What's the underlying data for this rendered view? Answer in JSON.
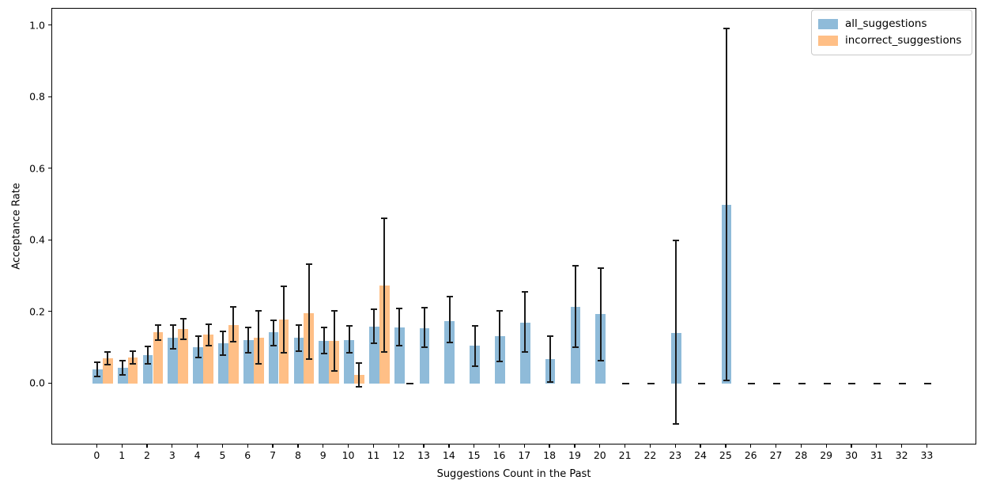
{
  "axes": {
    "ylabel": "Acceptance Rate",
    "xlabel": "Suggestions Count in the Past",
    "ytick_labels": [
      "0.0",
      "0.2",
      "0.4",
      "0.6",
      "0.8",
      "1.0"
    ],
    "spine_color": "#000000",
    "errorbar_color": "#1a1a1a"
  },
  "legend": {
    "items": [
      {
        "label": "all_suggestions",
        "color": "#8FBBD9",
        "swatch": "blue-swatch"
      },
      {
        "label": "incorrect_suggestions",
        "color": "#FFBF86",
        "swatch": "orange-swatch"
      }
    ],
    "position": "upper right"
  },
  "chart_data": {
    "type": "bar",
    "title": "",
    "xlabel": "Suggestions Count in the Past",
    "ylabel": "Acceptance Rate",
    "categories": [
      0,
      1,
      2,
      3,
      4,
      5,
      6,
      7,
      8,
      9,
      10,
      11,
      12,
      13,
      14,
      15,
      16,
      17,
      18,
      19,
      20,
      21,
      22,
      23,
      24,
      25,
      26,
      27,
      28,
      29,
      30,
      31,
      32,
      33
    ],
    "yticks": [
      0.0,
      0.2,
      0.4,
      0.6,
      0.8,
      1.0
    ],
    "ylim": [
      -0.172,
      1.048
    ],
    "xlim": [
      -1.803,
      34.966
    ],
    "grid": false,
    "error_bars": true,
    "legend_position": "upper right",
    "bar_width": 0.4,
    "series_offset": 0.405,
    "series": [
      {
        "name": "all_suggestions",
        "color": "#8FBBD9",
        "values": [
          0.04,
          0.044,
          0.079,
          0.129,
          0.102,
          0.113,
          0.122,
          0.143,
          0.128,
          0.119,
          0.122,
          0.16,
          0.158,
          0.156,
          0.176,
          0.106,
          0.132,
          0.171,
          0.068,
          0.215,
          0.194,
          0,
          0,
          0.141,
          0,
          0.499,
          0,
          0,
          0,
          0,
          0,
          0,
          0,
          0
        ],
        "err_low": [
          0.021,
          0.024,
          0.055,
          0.097,
          0.073,
          0.081,
          0.086,
          0.106,
          0.09,
          0.084,
          0.086,
          0.113,
          0.106,
          0.103,
          0.116,
          0.049,
          0.062,
          0.088,
          0.005,
          0.103,
          0.064,
          0,
          0,
          -0.113,
          0,
          0.01,
          0,
          0,
          0,
          0,
          0,
          0,
          0,
          0
        ],
        "err_high": [
          0.06,
          0.064,
          0.105,
          0.164,
          0.132,
          0.147,
          0.158,
          0.178,
          0.164,
          0.158,
          0.162,
          0.208,
          0.211,
          0.212,
          0.243,
          0.161,
          0.204,
          0.256,
          0.134,
          0.329,
          0.323,
          0,
          0,
          0.401,
          0,
          0.992,
          0,
          0,
          0,
          0,
          0,
          0,
          0,
          0
        ]
      },
      {
        "name": "incorrect_suggestions",
        "color": "#FFBF86",
        "values": [
          0.071,
          0.074,
          0.144,
          0.152,
          0.138,
          0.164,
          0.128,
          0.18,
          0.198,
          0.119,
          0.024,
          0.274,
          0,
          null,
          null,
          null,
          null,
          null,
          null,
          null,
          null,
          null,
          null,
          null,
          null,
          null,
          null,
          null,
          null,
          null,
          null,
          null,
          null,
          null
        ],
        "err_low": [
          0.053,
          0.055,
          0.123,
          0.125,
          0.106,
          0.117,
          0.055,
          0.086,
          0.068,
          0.035,
          -0.008,
          0.088,
          0,
          null,
          null,
          null,
          null,
          null,
          null,
          null,
          null,
          null,
          null,
          null,
          null,
          null,
          null,
          null,
          null,
          null,
          null,
          null,
          null,
          null
        ],
        "err_high": [
          0.088,
          0.09,
          0.165,
          0.182,
          0.167,
          0.214,
          0.204,
          0.272,
          0.334,
          0.204,
          0.057,
          0.462,
          0,
          null,
          null,
          null,
          null,
          null,
          null,
          null,
          null,
          null,
          null,
          null,
          null,
          null,
          null,
          null,
          null,
          null,
          null,
          null,
          null,
          null
        ]
      }
    ]
  }
}
